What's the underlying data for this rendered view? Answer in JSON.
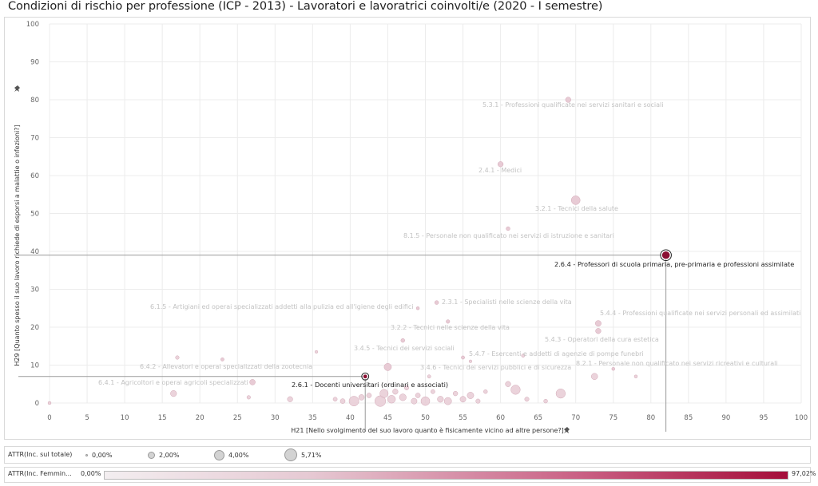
{
  "title": "Condizioni di rischio per professione (ICP - 2013) - Lavoratori e lavoratrici coinvolti/e (2020 - I semestre)",
  "chart_data": {
    "type": "scatter",
    "xlabel": "H21 [Nello svolgimento del suo lavoro quanto è fisicamente vicino ad altre persone?]",
    "ylabel": "H29 [Quanto spesso il suo lavoro richiede di esporsi a malattie o infezioni?]",
    "xlim": [
      0,
      100
    ],
    "ylim": [
      0,
      100
    ],
    "xticks": [
      0,
      5,
      10,
      15,
      20,
      25,
      30,
      35,
      40,
      45,
      50,
      55,
      60,
      65,
      70,
      75,
      80,
      85,
      90,
      95,
      100
    ],
    "yticks": [
      0,
      10,
      20,
      30,
      40,
      50,
      60,
      70,
      80,
      90,
      100
    ],
    "grid": true,
    "highlighted": [
      {
        "x": 82,
        "y": 39,
        "label": "2.6.4 - Professori di scuola primaria, pre-primaria e professioni assimilate"
      },
      {
        "x": 42,
        "y": 7,
        "label": "2.6.1 - Docenti universitari (ordinari e associati)"
      }
    ],
    "labeled_points": [
      {
        "x": 69,
        "y": 80,
        "size": 1.2,
        "label": "5.3.1 - Professioni qualificate nei servizi sanitari e sociali"
      },
      {
        "x": 60,
        "y": 63,
        "size": 1.2,
        "label": "2.4.1 - Medici"
      },
      {
        "x": 70,
        "y": 53.5,
        "size": 2.6,
        "label": "3.2.1 - Tecnici della salute"
      },
      {
        "x": 61,
        "y": 46,
        "size": 0.6,
        "label": "8.1.5 - Personale non qualificato nei servizi di istruzione e sanitari"
      },
      {
        "x": 51.5,
        "y": 26.5,
        "size": 0.6,
        "label": "2.3.1 - Specialisti nelle scienze della vita"
      },
      {
        "x": 49,
        "y": 25,
        "size": 0.3,
        "label": "6.1.5 - Artigiani ed operai specializzati addetti alla pulizia ed all'igiene degli edifici"
      },
      {
        "x": 73,
        "y": 21,
        "size": 1.4,
        "label": "5.4.4 - Professioni qualificate nei servizi personali ed assimilati"
      },
      {
        "x": 53,
        "y": 21.5,
        "size": 0.5,
        "label": "3.2.2 - Tecnici nelle scienze della vita"
      },
      {
        "x": 73,
        "y": 19,
        "size": 1.2,
        "label": "5.4.3 - Operatori della cura estetica"
      },
      {
        "x": 47,
        "y": 16.5,
        "size": 0.6,
        "label": "3.4.5 - Tecnici dei servizi sociali"
      },
      {
        "x": 55,
        "y": 12,
        "size": 0.4,
        "label": "5.4.7 - Esercenti e addetti di agenzie di pompe funebri"
      },
      {
        "x": 45,
        "y": 9.5,
        "size": 2.0,
        "label": "3.4.6 - Tecnici dei servizi pubblici e di sicurezza"
      },
      {
        "x": 75,
        "y": 9,
        "size": 0.3,
        "label": "8.2.1 - Personale non qualificato nei servizi ricreativi e culturali"
      },
      {
        "x": 23,
        "y": 11.5,
        "size": 0.4,
        "label": "6.4.2 - Allevatori e operai specializzati della zootecnia"
      },
      {
        "x": 27,
        "y": 5.5,
        "size": 1.3,
        "label": "6.4.1 - Agricoltori e operai agricoli specializzati"
      }
    ],
    "other_points": [
      {
        "x": 17,
        "y": 12,
        "size": 0.5
      },
      {
        "x": 16.5,
        "y": 2.5,
        "size": 1.5
      },
      {
        "x": 26.5,
        "y": 1.5,
        "size": 0.5
      },
      {
        "x": 32,
        "y": 1,
        "size": 1.2
      },
      {
        "x": 35.5,
        "y": 13.5,
        "size": 0.2
      },
      {
        "x": 38,
        "y": 1,
        "size": 0.7
      },
      {
        "x": 39,
        "y": 0.5,
        "size": 1.0
      },
      {
        "x": 40.5,
        "y": 0.5,
        "size": 3.0
      },
      {
        "x": 41.5,
        "y": 1.5,
        "size": 1.3
      },
      {
        "x": 42.5,
        "y": 2,
        "size": 1.0
      },
      {
        "x": 44,
        "y": 0.5,
        "size": 3.4
      },
      {
        "x": 44.5,
        "y": 2.5,
        "size": 2.4
      },
      {
        "x": 45.5,
        "y": 1,
        "size": 2.2
      },
      {
        "x": 46,
        "y": 3,
        "size": 1.2
      },
      {
        "x": 47,
        "y": 1.5,
        "size": 1.8
      },
      {
        "x": 47.5,
        "y": 4,
        "size": 0.8
      },
      {
        "x": 48.5,
        "y": 0.5,
        "size": 1.4
      },
      {
        "x": 49,
        "y": 2,
        "size": 1.0
      },
      {
        "x": 50,
        "y": 0.5,
        "size": 2.6
      },
      {
        "x": 51,
        "y": 3,
        "size": 0.7
      },
      {
        "x": 52,
        "y": 1,
        "size": 1.5
      },
      {
        "x": 53,
        "y": 0.5,
        "size": 2.0
      },
      {
        "x": 54,
        "y": 2.5,
        "size": 0.9
      },
      {
        "x": 55,
        "y": 1,
        "size": 1.4
      },
      {
        "x": 56,
        "y": 2,
        "size": 1.7
      },
      {
        "x": 57,
        "y": 0.5,
        "size": 0.8
      },
      {
        "x": 58,
        "y": 3,
        "size": 0.6
      },
      {
        "x": 61,
        "y": 5,
        "size": 1.2
      },
      {
        "x": 62,
        "y": 3.5,
        "size": 2.8
      },
      {
        "x": 63.5,
        "y": 1,
        "size": 0.8
      },
      {
        "x": 66,
        "y": 0.5,
        "size": 0.6
      },
      {
        "x": 68,
        "y": 2.5,
        "size": 2.8
      },
      {
        "x": 72.5,
        "y": 7,
        "size": 1.6
      },
      {
        "x": 78,
        "y": 7,
        "size": 0.3
      },
      {
        "x": 50.5,
        "y": 7,
        "size": 0.4
      },
      {
        "x": 63,
        "y": 12.5,
        "size": 0.4
      },
      {
        "x": 56,
        "y": 11,
        "size": 0.2
      },
      {
        "x": 0,
        "y": 0,
        "size": 0.3
      }
    ]
  },
  "legend": {
    "size_title": "ATTR(Inc. sul totale)",
    "size_items": [
      "0,00%",
      "2,00%",
      "4,00%",
      "5,71%"
    ],
    "color_title": "ATTR(Inc. Femmin...",
    "color_min": "0,00%",
    "color_max": "97,02%"
  },
  "colors": {
    "point_faint": "#e8cbd5",
    "point_stroke": "#d2a8b6",
    "highlight": "#8b1033",
    "refline": "#9a9a9a",
    "grid": "#ececec"
  },
  "icons": {
    "axis_pin": "pin-icon"
  }
}
